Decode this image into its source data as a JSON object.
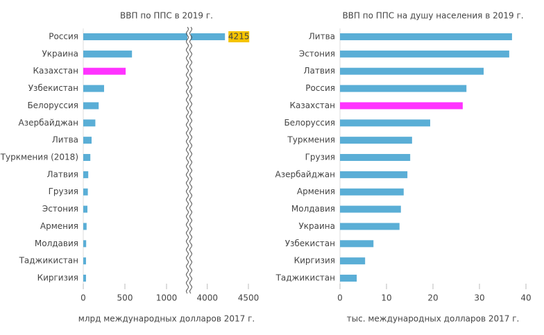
{
  "chart_data": [
    {
      "type": "bar",
      "orientation": "horizontal",
      "title": "ВВП по ППС в 2019 г.",
      "xlabel": "млрд международных долларов 2017 г.",
      "categories": [
        "Россия",
        "Украина",
        "Казахстан",
        "Узбекистан",
        "Белоруссия",
        "Азербайджан",
        "Литва",
        "Туркмения (2018)",
        "Латвия",
        "Грузия",
        "Эстония",
        "Армения",
        "Молдавия",
        "Таджикистан",
        "Киргизия"
      ],
      "values": [
        4215,
        585,
        509,
        250,
        185,
        145,
        100,
        85,
        60,
        55,
        50,
        40,
        35,
        33,
        33
      ],
      "colors": [
        "#5aaed6",
        "#5aaed6",
        "#ff33ff",
        "#5aaed6",
        "#5aaed6",
        "#5aaed6",
        "#5aaed6",
        "#5aaed6",
        "#5aaed6",
        "#5aaed6",
        "#5aaed6",
        "#5aaed6",
        "#5aaed6",
        "#5aaed6",
        "#5aaed6"
      ],
      "xlim": [
        0,
        4500
      ],
      "xticks": [
        0,
        500,
        1000,
        4000,
        4500
      ],
      "axis_break": [
        1250,
        3800
      ],
      "labeled_bars": [
        0
      ],
      "label_color": "#f5c400"
    },
    {
      "type": "bar",
      "orientation": "horizontal",
      "title": "ВВП по ППС на душу населения в 2019 г.",
      "xlabel": "тыс. международных долларов 2017 г.",
      "categories": [
        "Литва",
        "Эстония",
        "Латвия",
        "Россия",
        "Казахстан",
        "Белоруссия",
        "Туркмения",
        "Грузия",
        "Азербайджан",
        "Армения",
        "Молдавия",
        "Украина",
        "Узбекистан",
        "Киргизия",
        "Таджикистан"
      ],
      "values": [
        37.0,
        36.4,
        30.9,
        27.2,
        26.4,
        19.4,
        15.5,
        15.1,
        14.5,
        13.7,
        13.1,
        12.8,
        7.2,
        5.4,
        3.6
      ],
      "colors": [
        "#5aaed6",
        "#5aaed6",
        "#5aaed6",
        "#5aaed6",
        "#ff33ff",
        "#5aaed6",
        "#5aaed6",
        "#5aaed6",
        "#5aaed6",
        "#5aaed6",
        "#5aaed6",
        "#5aaed6",
        "#5aaed6",
        "#5aaed6",
        "#5aaed6"
      ],
      "xlim": [
        0,
        40
      ],
      "xticks": [
        0,
        10,
        20,
        30,
        40
      ]
    }
  ]
}
